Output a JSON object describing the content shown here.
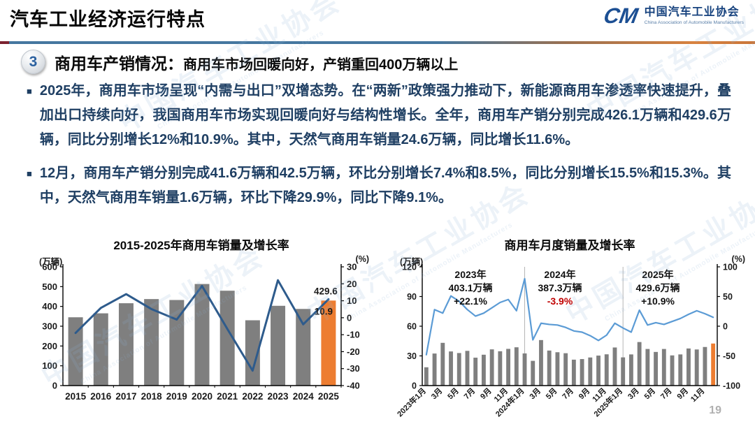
{
  "header": {
    "title": "汽车工业经济运行特点",
    "logo": {
      "mark": "CM",
      "org_cn": "中国汽车工业协会",
      "org_en": "China Association of Automobile Manufacturers"
    }
  },
  "section": {
    "number": "3",
    "heading_main": "商用车产销情况：",
    "heading_sub": "商用车市场回暖向好，产销重回400万辆以上"
  },
  "bullets": [
    "2025年，商用车市场呈现“内需与出口”双增态势。在“两新”政策强力推动下，新能源商用车渗透率快速提升，叠加出口持续向好，我国商用车市场实现回暖向好与结构性增长。全年，商用车产销分别完成426.1万辆和429.6万辆，同比分别增长12%和10.9%。其中，天然气商用车销量24.6万辆，同比增长11.6%。",
    "12月，商用车产销分别完成41.6万辆和42.5万辆，环比分别增长7.4%和8.5%，同比分别增长15.5%和15.3%。其中，天然气商用车销量1.6万辆，环比下降29.9%，同比下降9.1%。"
  ],
  "watermark": {
    "cn": "中国汽车工业协会",
    "en": "China Association of Automobile Manufacturers"
  },
  "page_number": "19",
  "colors": {
    "bar_gray": "#7F7F7F",
    "bar_orange": "#ED7D31",
    "line_dark_blue": "#2E5B8C",
    "line_light_blue": "#5B9BD5",
    "accent_red": "#C00000",
    "divider_blue": "#45779F",
    "divider_orange": "#D8823F",
    "body_text": "#1F3F63"
  },
  "chart_data": [
    {
      "type": "combo-bar-line",
      "title": "2015-2025年商用车销量及增长率",
      "left_axis": {
        "label": "(万辆)",
        "min": 0,
        "max": 600,
        "step": 100
      },
      "right_axis": {
        "label": "(%)",
        "min": -40,
        "max": 30,
        "step": 10
      },
      "categories": [
        "2015",
        "2016",
        "2017",
        "2018",
        "2019",
        "2020",
        "2021",
        "2022",
        "2023",
        "2024",
        "2025"
      ],
      "x_mode": "each",
      "bar_frac": 0.58,
      "bars": {
        "name": "销量(万辆)",
        "values": [
          345.1,
          365.1,
          416.1,
          437.1,
          432.4,
          513.3,
          479.3,
          330.0,
          403.1,
          387.3,
          429.6
        ],
        "color": "#7F7F7F",
        "highlight_index": 10,
        "highlight_color": "#ED7D31"
      },
      "line": {
        "name": "同比增长率(%)",
        "values": [
          -9.0,
          5.8,
          13.9,
          5.1,
          -1.1,
          18.7,
          -6.6,
          -31.2,
          22.1,
          -3.9,
          10.9
        ],
        "color": "#2E5B8C",
        "width": 3
      },
      "value_labels": [
        {
          "text": "429.6",
          "index": 10,
          "ref": "bar"
        },
        {
          "text": "10.9",
          "index": 10,
          "ref": "line"
        }
      ]
    },
    {
      "type": "combo-bar-line",
      "title": "商用车月度销量及增长率",
      "left_axis": {
        "label": "(万辆)",
        "min": 0,
        "max": 120,
        "step": 30
      },
      "right_axis": {
        "label": "(%)",
        "min": -100,
        "max": 100,
        "step": 50
      },
      "x_tick_labels": [
        "2023年1月",
        "3月",
        "5月",
        "7月",
        "9月",
        "11月",
        "2024年1月",
        "3月",
        "5月",
        "7月",
        "9月",
        "11月",
        "2025年1月",
        "3月",
        "5月",
        "7月",
        "9月",
        "11月"
      ],
      "x_mode": "every2",
      "bar_frac": 0.5,
      "bars": {
        "name": "月度销量(万辆)",
        "values": [
          18.5,
          32.4,
          43.2,
          34.5,
          32.9,
          35.1,
          28.2,
          31.2,
          36.6,
          34.7,
          37.1,
          38.7,
          32.5,
          25.0,
          46.0,
          35.4,
          33.7,
          32.7,
          26.2,
          26.8,
          28.4,
          30.3,
          31.6,
          38.5,
          28.5,
          31.5,
          44.0,
          37.0,
          34.0,
          37.0,
          30.5,
          31.5,
          37.5,
          36.5,
          39.0,
          42.5
        ],
        "color": "#7F7F7F",
        "highlight_index": 35,
        "highlight_color": "#ED7D31"
      },
      "line": {
        "name": "同比增长率(%)",
        "values": [
          -48,
          28,
          22,
          51,
          42,
          28,
          17,
          22,
          31,
          40,
          45,
          26,
          80,
          -23,
          5,
          3,
          2,
          -2,
          -8,
          -10,
          -16,
          -24,
          -15,
          5,
          -3,
          -10,
          27,
          2,
          6,
          3,
          8,
          13,
          20,
          26,
          21,
          15
        ],
        "color": "#5B9BD5",
        "width": 2.2
      },
      "separators": [
        12,
        24
      ],
      "annotations": [
        {
          "year": "2023年",
          "total": "403.1万辆",
          "growth": "+22.1%",
          "growth_color": "#111111"
        },
        {
          "year": "2024年",
          "total": "387.3万辆",
          "growth": "-3.9%",
          "growth_color": "#C00000"
        },
        {
          "year": "2025年",
          "total": "429.6万辆",
          "growth": "+10.9%",
          "growth_color": "#111111"
        }
      ]
    }
  ]
}
